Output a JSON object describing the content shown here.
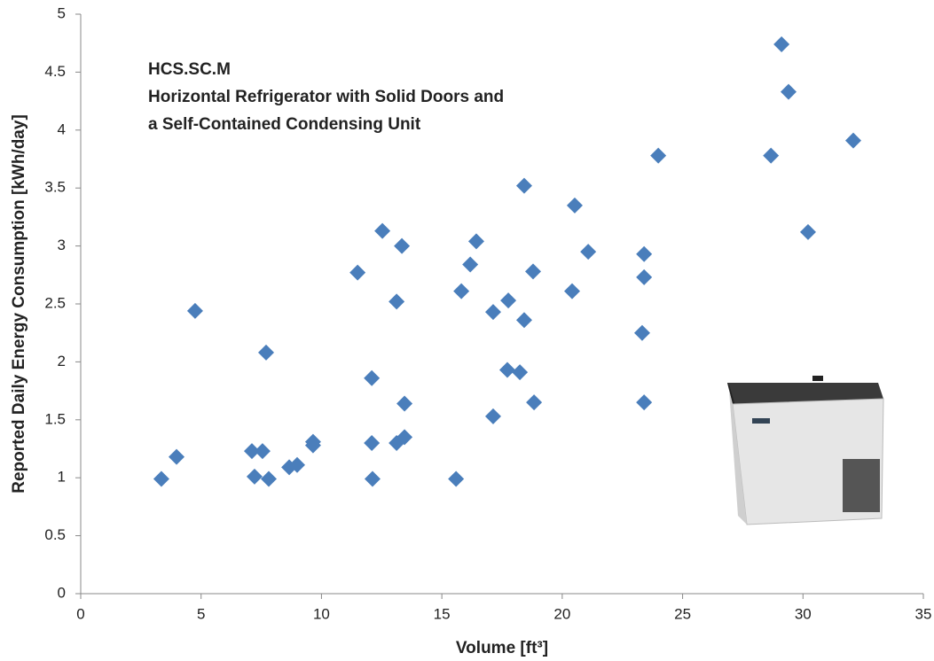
{
  "chart_data": {
    "type": "scatter",
    "x_label": "Volume [ft³]",
    "y_label": "Reported Daily Energy Consumption  [kWh/day]",
    "annotation": [
      "HCS.SC.M",
      "Horizontal Refrigerator with Solid Doors and",
      "a Self-Contained Condensing Unit"
    ],
    "color": "#4a7ebb",
    "xlim": [
      0,
      35
    ],
    "xticks": [
      0,
      5,
      10,
      15,
      20,
      25,
      30,
      35
    ],
    "ylim": [
      0,
      5
    ],
    "yticks": [
      0,
      0.5,
      1,
      1.5,
      2,
      2.5,
      3,
      3.5,
      4,
      4.5,
      5
    ],
    "grid": false,
    "x": [
      3.35,
      3.98,
      4.75,
      7.11,
      7.22,
      7.55,
      7.7,
      7.81,
      8.66,
      8.99,
      9.65,
      9.65,
      11.5,
      12.09,
      12.09,
      12.12,
      12.53,
      13.12,
      13.12,
      13.34,
      13.45,
      13.45,
      15.59,
      15.81,
      16.18,
      16.43,
      17.13,
      17.13,
      17.72,
      17.76,
      18.24,
      18.42,
      18.42,
      18.79,
      18.83,
      20.41,
      20.52,
      21.08,
      23.32,
      23.4,
      23.4,
      23.4,
      23.99,
      28.67,
      29.11,
      29.4,
      30.21,
      32.09
    ],
    "values": [
      0.99,
      1.18,
      2.44,
      1.23,
      1.01,
      1.23,
      2.08,
      0.99,
      1.09,
      1.11,
      1.31,
      1.28,
      2.77,
      1.86,
      1.3,
      0.99,
      3.13,
      2.52,
      1.3,
      3.0,
      1.64,
      1.35,
      0.99,
      2.61,
      2.84,
      3.04,
      1.53,
      2.43,
      1.93,
      2.53,
      1.91,
      2.36,
      3.52,
      2.78,
      1.65,
      2.61,
      3.35,
      2.95,
      2.25,
      2.93,
      2.73,
      1.65,
      3.78,
      3.78,
      4.74,
      4.33,
      3.12,
      3.91
    ]
  }
}
